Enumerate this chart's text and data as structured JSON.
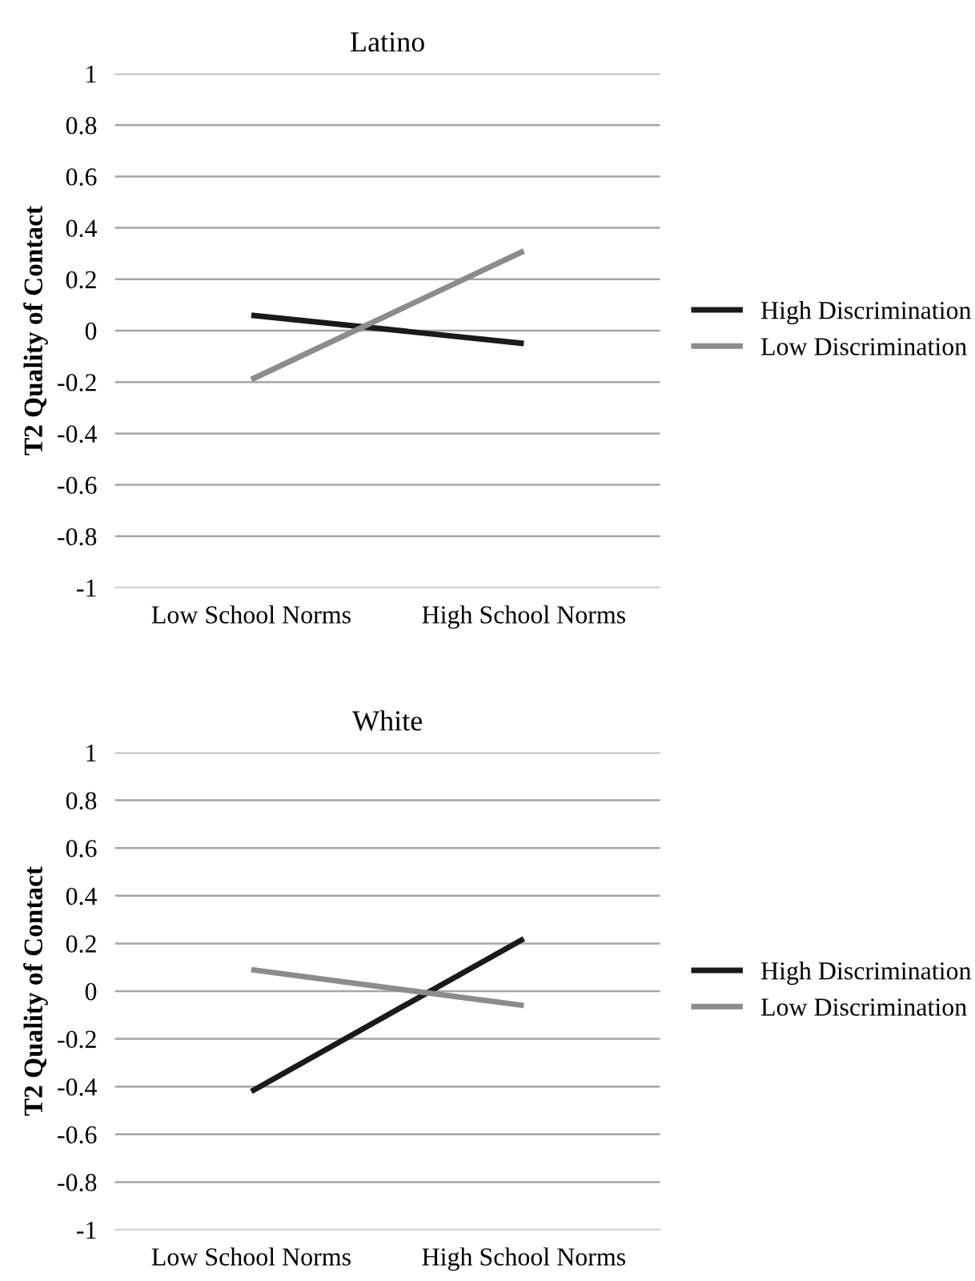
{
  "chart_data": [
    {
      "type": "line",
      "title": "Latino",
      "ylabel": "T2 Quality of Contact",
      "categories": [
        "Low School Norms",
        "High School Norms"
      ],
      "series": [
        {
          "name": "High Discrimination",
          "color": "#1a1a1a",
          "values": [
            0.06,
            -0.05
          ]
        },
        {
          "name": "Low Discrimination",
          "color": "#8c8c8c",
          "values": [
            -0.19,
            0.31
          ]
        }
      ],
      "ylim": [
        -1,
        1
      ],
      "yticks": [
        1,
        0.8,
        0.6,
        0.4,
        0.2,
        0,
        {
          "value": -0.2,
          "label": "-0.2"
        },
        {
          "value": -0.4,
          "label": "-0.4"
        },
        {
          "value": -0.6,
          "label": "-0.6"
        },
        {
          "value": -0.8,
          "label": "-0.8"
        },
        {
          "value": -1,
          "label": "-1"
        }
      ],
      "grid": "y",
      "legend": "right"
    },
    {
      "type": "line",
      "title": "White",
      "ylabel": "T2 Quality of Contact",
      "categories": [
        "Low School Norms",
        "High School Norms"
      ],
      "series": [
        {
          "name": "High Discrimination",
          "color": "#1a1a1a",
          "values": [
            -0.42,
            0.22
          ]
        },
        {
          "name": "Low Discrimination",
          "color": "#8c8c8c",
          "values": [
            0.09,
            -0.06
          ]
        }
      ],
      "ylim": [
        -1,
        1
      ],
      "yticks": [
        1,
        0.8,
        0.6,
        0.4,
        0.2,
        0,
        {
          "value": -0.2,
          "label": "-0.2"
        },
        {
          "value": -0.4,
          "label": "-0.4"
        },
        {
          "value": -0.6,
          "label": "-0.6"
        },
        {
          "value": -0.8,
          "label": "-0.8"
        },
        {
          "value": -1,
          "label": "-1"
        }
      ],
      "grid": "y",
      "legend": "right"
    }
  ]
}
